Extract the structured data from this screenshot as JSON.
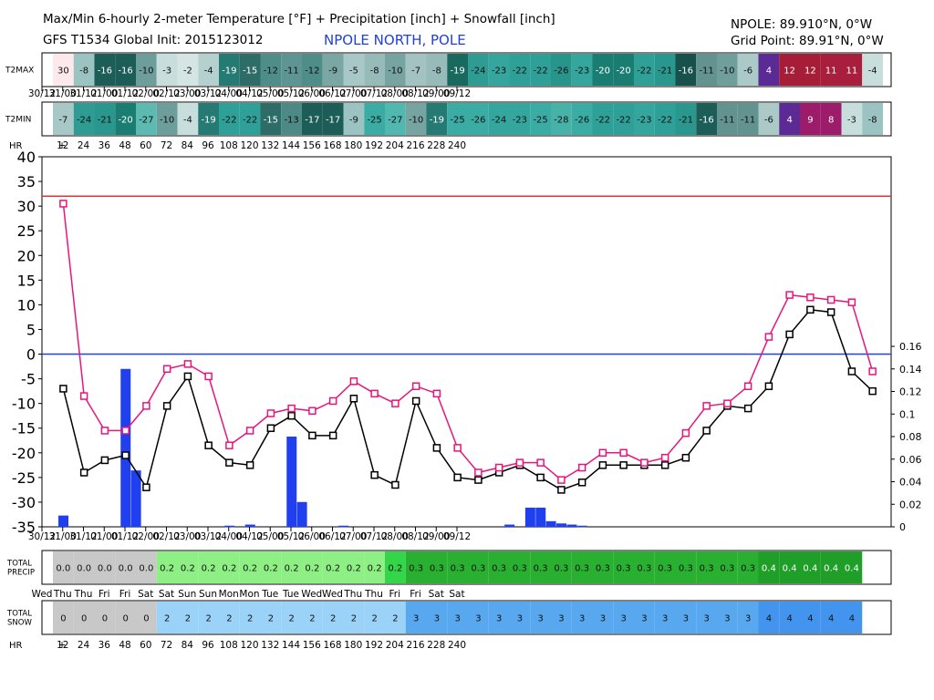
{
  "header": {
    "title": "Max/Min 6-hourly 2-meter Temperature [°F] + Precipitation [inch] + Snowfall [inch]",
    "model_line": "GFS T1534 Global Init: 2015123012",
    "location_name": "NPOLE NORTH, POLE",
    "station": "NPOLE: 89.910°N, 0°W",
    "grid_point": "Grid Point: 89.91°N, 0°W"
  },
  "rows": {
    "t2max_label": "T2MAX",
    "t2min_label": "T2MIN",
    "hr_label": "HR",
    "precip_label": [
      "TOTAL",
      "PRECIP"
    ],
    "snow_label": [
      "TOTAL",
      "SNOW"
    ]
  },
  "colors": {
    "max_line": "#e8157d",
    "min_line": "#000000",
    "freezing_line": "#e83030",
    "zero_line": "#2040e8",
    "precip_bar": "#2040f0"
  },
  "chart_data": {
    "type": "line",
    "timestamps": [
      "30/12",
      "31/00",
      "31/12",
      "01/00",
      "01/12",
      "02/00",
      "02/12",
      "03/00",
      "03/12",
      "04/00",
      "04/12",
      "05/00",
      "05/12",
      "06/00",
      "06/12",
      "07/00",
      "07/12",
      "08/00",
      "08/12",
      "09/00",
      "09/12"
    ],
    "forecast_hours": [
      "+",
      "12",
      "24",
      "36",
      "48",
      "60",
      "72",
      "84",
      "96",
      "108",
      "120",
      "132",
      "144",
      "156",
      "168",
      "180",
      "192",
      "204",
      "216",
      "228",
      "240"
    ],
    "weekdays": [
      "Wed",
      "Thu",
      "Thu",
      "Fri",
      "Fri",
      "Sat",
      "Sat",
      "Sun",
      "Sun",
      "Mon",
      "Mon",
      "Tue",
      "Tue",
      "Wed",
      "Wed",
      "Thu",
      "Thu",
      "Fri",
      "Fri",
      "Sat",
      "Sat"
    ],
    "t2max": [
      30,
      -8,
      -16,
      -16,
      -10,
      -3,
      -2,
      -4,
      -19,
      -15,
      -12,
      -11,
      -12,
      -9,
      -5,
      -8,
      -10,
      -7,
      -8,
      -19,
      -24,
      -23,
      -22,
      -22,
      -26,
      -23,
      -20,
      -20,
      -22,
      -21,
      -16,
      -11,
      -10,
      -6,
      4,
      12,
      12,
      11,
      11,
      -4
    ],
    "t2min": [
      -7,
      -24,
      -21,
      -20,
      -27,
      -10,
      -4,
      -19,
      -22,
      -22,
      -15,
      -13,
      -17,
      -17,
      -9,
      -25,
      -27,
      -10,
      -19,
      -25,
      -26,
      -24,
      -23,
      -25,
      -28,
      -26,
      -22,
      -22,
      -23,
      -22,
      -21,
      -16,
      -11,
      -11,
      -6,
      4,
      9,
      8,
      -3,
      -8
    ],
    "plot_max": [
      30.5,
      -8.5,
      -15.5,
      -15.5,
      -10.5,
      -3,
      -2,
      -4.5,
      -18.5,
      -15.5,
      -12,
      -11,
      -11.5,
      -9.5,
      -5.5,
      -8,
      -10,
      -6.5,
      -8,
      -19,
      -24,
      -23,
      -22,
      -22,
      -25.5,
      -23,
      -20,
      -20,
      -22,
      -21,
      -16,
      -10.5,
      -10,
      -6.5,
      3.5,
      12,
      11.5,
      11,
      10.5,
      -3.5
    ],
    "plot_min": [
      -7,
      -24,
      -21.5,
      -20.5,
      -27,
      -10.5,
      -4.5,
      -18.5,
      -22,
      -22.5,
      -15,
      -12.5,
      -16.5,
      -16.5,
      -9,
      -24.5,
      -26.5,
      -9.5,
      -19,
      -25,
      -25.5,
      -24,
      -22.5,
      -25,
      -27.5,
      -26,
      -22.5,
      -22.5,
      -22.5,
      -22.5,
      -21,
      -15.5,
      -10.5,
      -11,
      -6.5,
      4,
      9,
      8.5,
      -3.5,
      -7.5
    ],
    "precip_6h": [
      0.01,
      0,
      0,
      0,
      0,
      0,
      0.14,
      0.05,
      0,
      0,
      0,
      0,
      0,
      0,
      0,
      0,
      0.001,
      0,
      0.002,
      0,
      0,
      0,
      0.08,
      0.022,
      0,
      0,
      0,
      0.001,
      0,
      0,
      0,
      0,
      0,
      0,
      0,
      0,
      0,
      0,
      0,
      0,
      0,
      0,
      0,
      0.002,
      0,
      0.017,
      0.017,
      0.005,
      0.003,
      0.002,
      0.001
    ],
    "total_precip": [
      "0.0",
      "0.0",
      "0.0",
      "0.0",
      "0.0",
      "0.2",
      "0.2",
      "0.2",
      "0.2",
      "0.2",
      "0.2",
      "0.2",
      "0.2",
      "0.2",
      "0.2",
      "0.2",
      "0.2",
      "0.3",
      "0.3",
      "0.3",
      "0.3",
      "0.3",
      "0.3",
      "0.3",
      "0.3",
      "0.3",
      "0.3",
      "0.3",
      "0.3",
      "0.3",
      "0.3",
      "0.3",
      "0.3",
      "0.3",
      "0.4",
      "0.4",
      "0.4",
      "0.4",
      "0.4"
    ],
    "total_snow": [
      "0",
      "0",
      "0",
      "0",
      "0",
      "2",
      "2",
      "2",
      "2",
      "2",
      "2",
      "2",
      "2",
      "2",
      "2",
      "2",
      "2",
      "3",
      "3",
      "3",
      "3",
      "3",
      "3",
      "3",
      "3",
      "3",
      "3",
      "3",
      "3",
      "3",
      "3",
      "3",
      "3",
      "3",
      "4",
      "4",
      "4",
      "4",
      "4"
    ],
    "t2max_cell_colors": [
      "#fde9ec",
      "#9bc3c2",
      "#1d5d58",
      "#1d5d58",
      "#6d9e9c",
      "#c8dedd",
      "#d4e5e3",
      "#b4d1cf",
      "#267a74",
      "#2d6c67",
      "#4f8d89",
      "#5d9592",
      "#4f8d89",
      "#7aa6a3",
      "#a7c8c6",
      "#96bbb9",
      "#77a3a1",
      "#a2c3c1",
      "#96bbb9",
      "#19695f",
      "#2f9c93",
      "#35a69d",
      "#2fa098",
      "#2fa098",
      "#28958b",
      "#35a69d",
      "#1a7d72",
      "#1a7d72",
      "#2fa098",
      "#2a978e",
      "#18514b",
      "#63938f",
      "#6f9e9b",
      "#aac9c7",
      "#5b2a95",
      "#a51d36",
      "#a51d36",
      "#a81e3d",
      "#a81e3d",
      "#c8dedd"
    ],
    "t2min_cell_colors": [
      "#a7c8c6",
      "#2f9c93",
      "#2a978e",
      "#1a7d72",
      "#5cbab1",
      "#6d9e9c",
      "#c8dedd",
      "#267a74",
      "#2fa098",
      "#2fa098",
      "#2d6c67",
      "#4d8a86",
      "#1d5d58",
      "#1d5d58",
      "#9bc3c2",
      "#3aaca3",
      "#50b8ae",
      "#77a3a1",
      "#267a74",
      "#3aaca3",
      "#3aaca3",
      "#35a69d",
      "#35a69d",
      "#3aaca3",
      "#48b2a8",
      "#3aaca3",
      "#2fa098",
      "#2fa098",
      "#35a69d",
      "#2fa098",
      "#2a978e",
      "#1d5d58",
      "#63938f",
      "#63938f",
      "#aac9c7",
      "#5b2a95",
      "#9c1c6b",
      "#9c1c6b",
      "#c8dedd",
      "#9bc3c2"
    ],
    "y_left_ticks": [
      "40",
      "35",
      "30",
      "25",
      "20",
      "15",
      "10",
      "5",
      "0",
      "-5",
      "-10",
      "-15",
      "-20",
      "-25",
      "-30",
      "-35"
    ],
    "y_right_ticks": [
      "0.16",
      "0.14",
      "0.12",
      "0.1",
      "0.08",
      "0.06",
      "0.04",
      "0.02",
      "0"
    ],
    "ylim_temp": [
      -35,
      40
    ],
    "ylim_precip": [
      0,
      0.16
    ],
    "freezing_line_value": 32,
    "zero_line_value": 0
  }
}
